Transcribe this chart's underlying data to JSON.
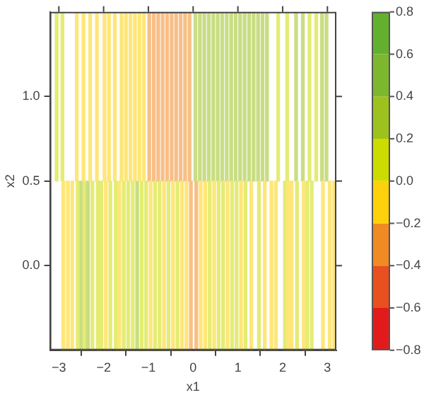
{
  "chart_data": {
    "type": "bar",
    "xlabel": "x1",
    "ylabel": "x2",
    "xlim": [
      -3.2,
      3.2
    ],
    "xticks": [
      {
        "value": -3,
        "label": "−3"
      },
      {
        "value": -2,
        "label": "−2"
      },
      {
        "value": -1,
        "label": "−1"
      },
      0,
      1,
      2,
      3
    ],
    "ylim": [
      -0.5,
      1.5
    ],
    "yticks": [
      {
        "value": 0,
        "label": "0.0"
      },
      {
        "value": 0.5,
        "label": "0.5"
      },
      {
        "value": 1,
        "label": "1.0"
      }
    ],
    "clim": [
      -0.8,
      0.8
    ],
    "cticks": [
      {
        "value": -0.8,
        "label": "−0.8"
      },
      {
        "value": -0.6,
        "label": "−0.6"
      },
      {
        "value": -0.4,
        "label": "−0.4"
      },
      {
        "value": -0.2,
        "label": "−0.2"
      },
      {
        "value": 0,
        "label": "0.0"
      },
      {
        "value": 0.2,
        "label": "0.2"
      },
      {
        "value": 0.4,
        "label": "0.4"
      },
      {
        "value": 0.6,
        "label": "0.6"
      },
      {
        "value": 0.8,
        "label": "0.8"
      }
    ],
    "grid": false,
    "legend": false,
    "series": [
      {
        "x": [
          -3.05,
          -2.92,
          -2.9,
          -2.8,
          -2.7,
          -2.6,
          -2.58,
          -2.5,
          -2.45,
          -2.43,
          -2.35,
          -2.3,
          -2.25,
          -2.15,
          -2.13,
          -2.05,
          -1.98,
          -1.95,
          -1.88,
          -1.85,
          -1.75,
          -1.73,
          -1.65,
          -1.6,
          -1.55,
          -1.5,
          -1.45,
          -1.4,
          -1.35,
          -1.3,
          -1.25,
          -1.2,
          -1.15,
          -1.1,
          -1.05,
          -0.98,
          -0.95,
          -0.88,
          -0.85,
          -0.78,
          -0.75,
          -0.68,
          -0.65,
          -0.58,
          -0.55,
          -0.48,
          -0.45,
          -0.38,
          -0.35,
          -0.28,
          -0.25,
          -0.18,
          -0.15,
          -0.08,
          -0.05,
          0.05,
          0.07,
          0.15,
          0.17,
          0.25,
          0.27,
          0.35,
          0.37,
          0.45,
          0.47,
          0.55,
          0.57,
          0.65,
          0.67,
          0.75,
          0.77,
          0.85,
          0.87,
          0.95,
          0.97,
          1.05,
          1.07,
          1.15,
          1.17,
          1.25,
          1.3,
          1.35,
          1.45,
          1.47,
          1.55,
          1.6,
          1.65,
          1.75,
          1.85,
          1.9,
          2.05,
          2.1,
          2.12,
          2.2,
          2.3,
          2.32,
          2.45,
          2.47,
          2.55,
          2.6,
          2.65,
          2.75,
          2.88,
          2.9,
          2.98,
          3.05,
          3.15
        ],
        "base": [
          0.5,
          0.5,
          -0.5,
          -0.5,
          -0.5,
          0.5,
          -0.5,
          -0.5,
          0.5,
          -0.5,
          -0.5,
          0.5,
          -0.5,
          0.5,
          -0.5,
          -0.5,
          0.5,
          -0.5,
          0.5,
          -0.5,
          0.5,
          -0.5,
          -0.5,
          0.5,
          -0.5,
          0.5,
          -0.5,
          0.5,
          -0.5,
          0.5,
          -0.5,
          0.5,
          -0.5,
          0.5,
          -0.5,
          0.5,
          -0.5,
          0.5,
          -0.5,
          0.5,
          -0.5,
          0.5,
          -0.5,
          0.5,
          -0.5,
          0.5,
          -0.5,
          0.5,
          -0.5,
          0.5,
          -0.5,
          0.5,
          -0.5,
          0.5,
          -0.5,
          0.5,
          -0.5,
          0.5,
          -0.5,
          0.5,
          -0.5,
          0.5,
          -0.5,
          0.5,
          -0.5,
          0.5,
          -0.5,
          0.5,
          -0.5,
          0.5,
          -0.5,
          0.5,
          -0.5,
          0.5,
          -0.5,
          0.5,
          -0.5,
          0.5,
          -0.5,
          0.5,
          -0.5,
          0.5,
          0.5,
          -0.5,
          0.5,
          -0.5,
          0.5,
          -0.5,
          -0.5,
          0.5,
          -0.5,
          0.5,
          -0.5,
          -0.5,
          0.5,
          -0.5,
          0.5,
          -0.5,
          -0.5,
          0.5,
          -0.5,
          0.5,
          0.5,
          -0.5,
          0.5,
          -0.5,
          -0.5
        ],
        "values": [
          1,
          1,
          1,
          1,
          1,
          1,
          1,
          1,
          1,
          1,
          1,
          1,
          1,
          1,
          1,
          1,
          1,
          1,
          1,
          1,
          1,
          1,
          1,
          1,
          1,
          1,
          1,
          1,
          1,
          1,
          1,
          1,
          1,
          1,
          1,
          1,
          1,
          1,
          1,
          1,
          1,
          1,
          1,
          1,
          1,
          1,
          1,
          1,
          1,
          1,
          1,
          1,
          1,
          1,
          1,
          1,
          1,
          1,
          1,
          1,
          1,
          1,
          1,
          1,
          1,
          1,
          1,
          1,
          1,
          1,
          1,
          1,
          1,
          1,
          1,
          1,
          1,
          1,
          1,
          1,
          1,
          1,
          1,
          1,
          1,
          1,
          1,
          1,
          1,
          1,
          1,
          1,
          1,
          1,
          1,
          1,
          1,
          1,
          1,
          1,
          1,
          1,
          1,
          1,
          1,
          1,
          1
        ],
        "colors": [
          "#e4ec73",
          "#e4ec73",
          "#fee679",
          "#fee679",
          "#fee679",
          "#fee679",
          "#e4ec73",
          "#c9dd83",
          "#fee679",
          "#e4ec73",
          "#c9dd83",
          "#fee679",
          "#e4ec73",
          "#fee679",
          "#e4ec73",
          "#e4ec73",
          "#fee679",
          "#fee679",
          "#fee679",
          "#e4ec73",
          "#fee679",
          "#e4ec73",
          "#fee679",
          "#fee679",
          "#e4ec73",
          "#fee679",
          "#e4ec73",
          "#fee679",
          "#e4ec73",
          "#fee679",
          "#c9dd83",
          "#fee679",
          "#e4ec73",
          "#fee679",
          "#e4ec73",
          "#f7bf87",
          "#fee679",
          "#f7bf87",
          "#e4ec73",
          "#f7bf87",
          "#e4ec73",
          "#f7bf87",
          "#fee679",
          "#f7bf87",
          "#e4ec73",
          "#f7bf87",
          "#fee679",
          "#f7bf87",
          "#e4ec73",
          "#f7bf87",
          "#fee679",
          "#f7bf87",
          "#fee679",
          "#f7bf87",
          "#f7bf87",
          "#c9dd83",
          "#f7bf87",
          "#c9dd83",
          "#fee679",
          "#c9dd83",
          "#fee679",
          "#c9dd83",
          "#e4ec73",
          "#c9dd83",
          "#fee679",
          "#c9dd83",
          "#e4ec73",
          "#c9dd83",
          "#e4ec73",
          "#c9dd83",
          "#fee679",
          "#c9dd83",
          "#e4ec73",
          "#c9dd83",
          "#e4ec73",
          "#c9dd83",
          "#fee679",
          "#c9dd83",
          "#e4ec73",
          "#c9dd83",
          "#fee679",
          "#c9dd83",
          "#c9dd83",
          "#e4ec73",
          "#c9dd83",
          "#fee679",
          "#c9dd83",
          "#fee679",
          "#fee679",
          "#e4ec73",
          "#e4ec73",
          "#e4ec73",
          "#fee679",
          "#fee679",
          "#c9dd83",
          "#e4ec73",
          "#c9dd83",
          "#fee679",
          "#e4ec73",
          "#e4ec73",
          "#e4ec73",
          "#e4ec73",
          "#c9dd83",
          "#fee679",
          "#c9dd83",
          "#fee679",
          "#fee679"
        ]
      }
    ]
  }
}
